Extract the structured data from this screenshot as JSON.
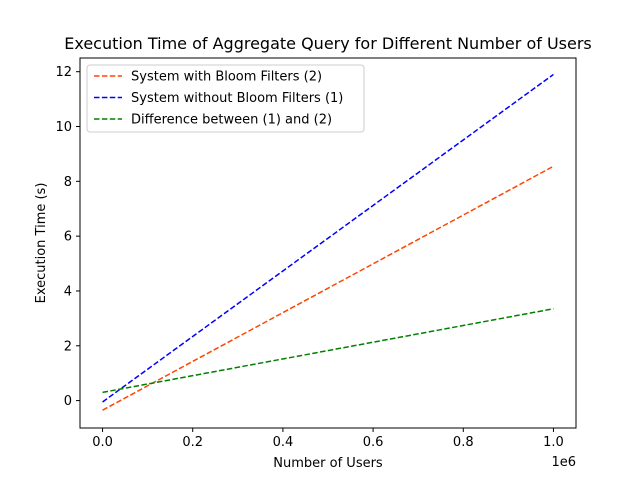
{
  "chart_data": {
    "type": "line",
    "title": "Execution Time of Aggregate Query for Different Number of Users",
    "xlabel": "Number of Users",
    "ylabel": "Execution Time (s)",
    "x_offset_label": "1e6",
    "x": [
      0,
      1000000
    ],
    "xlim": [
      -50000,
      1050000
    ],
    "ylim": [
      -1.0,
      12.5
    ],
    "xticks": [
      0,
      200000,
      400000,
      600000,
      800000,
      1000000
    ],
    "xtick_labels": [
      "0.0",
      "0.2",
      "0.4",
      "0.6",
      "0.8",
      "1.0"
    ],
    "yticks": [
      0,
      2,
      4,
      6,
      8,
      10,
      12
    ],
    "ytick_labels": [
      "0",
      "2",
      "4",
      "6",
      "8",
      "10",
      "12"
    ],
    "grid": false,
    "legend_position": "upper-left",
    "series": [
      {
        "name": "System with Bloom Filters (2)",
        "color": "#ff4500",
        "linestyle": "dashed",
        "values": [
          -0.35,
          8.55
        ]
      },
      {
        "name": "System without Bloom Filters (1)",
        "color": "#0000ff",
        "linestyle": "dashed",
        "values": [
          -0.05,
          11.9
        ]
      },
      {
        "name": "Difference between (1) and (2)",
        "color": "#008000",
        "linestyle": "dashed",
        "values": [
          0.3,
          3.35
        ]
      }
    ]
  }
}
